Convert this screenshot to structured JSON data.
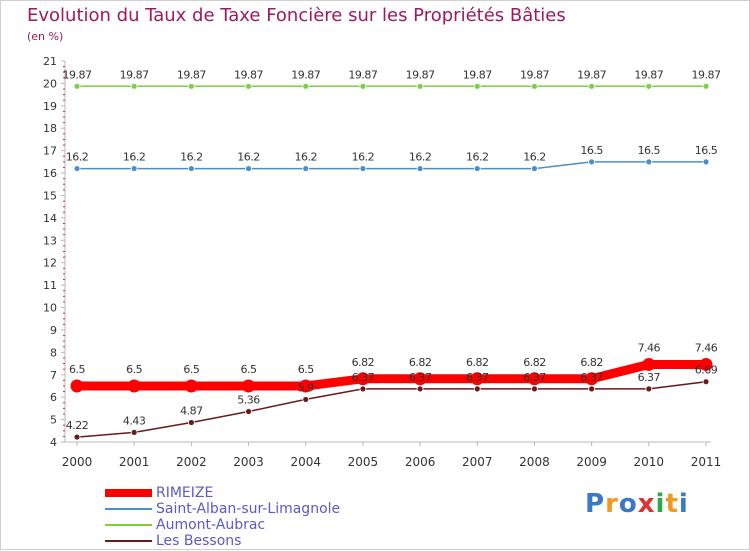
{
  "chart_data": {
    "type": "line",
    "title": "Evolution du Taux de Taxe Foncière sur les Propriétés Bâties",
    "ylabel": "(en %)",
    "xlabel": "",
    "categories": [
      "2000",
      "2001",
      "2002",
      "2003",
      "2004",
      "2005",
      "2006",
      "2007",
      "2008",
      "2009",
      "2010",
      "2011"
    ],
    "ylim": [
      4,
      21
    ],
    "yticks": [
      "4",
      "5",
      "6",
      "7",
      "8",
      "9",
      "10",
      "11",
      "12",
      "13",
      "14",
      "15",
      "16",
      "17",
      "18",
      "19",
      "20",
      "21"
    ],
    "grid": false,
    "legend_position": "bottom-left",
    "series": [
      {
        "name": "RIMEIZE",
        "color": "#ff0000",
        "values": [
          6.5,
          6.5,
          6.5,
          6.5,
          6.5,
          6.82,
          6.82,
          6.82,
          6.82,
          6.82,
          7.46,
          7.46
        ],
        "labels": [
          "6.5",
          "6.5",
          "6.5",
          "6.5",
          "6.5",
          "6.82",
          "6.82",
          "6.82",
          "6.82",
          "6.82",
          "7.46",
          "7.46"
        ]
      },
      {
        "name": "Saint-Alban-sur-Limagnole",
        "color": "#4a90c8",
        "values": [
          16.2,
          16.2,
          16.2,
          16.2,
          16.2,
          16.2,
          16.2,
          16.2,
          16.2,
          16.5,
          16.5,
          16.5
        ],
        "labels": [
          "16.2",
          "16.2",
          "16.2",
          "16.2",
          "16.2",
          "16.2",
          "16.2",
          "16.2",
          "16.2",
          "16.5",
          "16.5",
          "16.5"
        ]
      },
      {
        "name": "Aumont-Aubrac",
        "color": "#7ad13d",
        "values": [
          19.87,
          19.87,
          19.87,
          19.87,
          19.87,
          19.87,
          19.87,
          19.87,
          19.87,
          19.87,
          19.87,
          19.87
        ],
        "labels": [
          "19.87",
          "19.87",
          "19.87",
          "19.87",
          "19.87",
          "19.87",
          "19.87",
          "19.87",
          "19.87",
          "19.87",
          "19.87",
          "19.87"
        ]
      },
      {
        "name": "Les Bessons",
        "color": "#6b1a1a",
        "values": [
          4.22,
          4.43,
          4.87,
          5.36,
          5.9,
          6.37,
          6.37,
          6.37,
          6.37,
          6.37,
          6.37,
          6.69
        ],
        "labels": [
          "4.22",
          "4.43",
          "4.87",
          "5.36",
          "5.9",
          "6.37",
          "6.37",
          "6.37",
          "6.37",
          "6.37",
          "6.37",
          "6.69"
        ]
      }
    ]
  },
  "legend": {
    "items": [
      {
        "label": "RIMEIZE",
        "color": "#ff0000"
      },
      {
        "label": "Saint-Alban-sur-Limagnole",
        "color": "#4a90c8"
      },
      {
        "label": "Aumont-Aubrac",
        "color": "#7ad13d"
      },
      {
        "label": "Les Bessons",
        "color": "#6b1a1a"
      }
    ]
  },
  "logo": {
    "text": "Proxiti",
    "letters": [
      "P",
      "r",
      "o",
      "x",
      "i",
      "t",
      "i"
    ],
    "colors": [
      "#3a78c8",
      "#f09a1e",
      "#3a78c8",
      "#e03030",
      "#2ea84a",
      "#f09a1e",
      "#3a78c8"
    ]
  }
}
